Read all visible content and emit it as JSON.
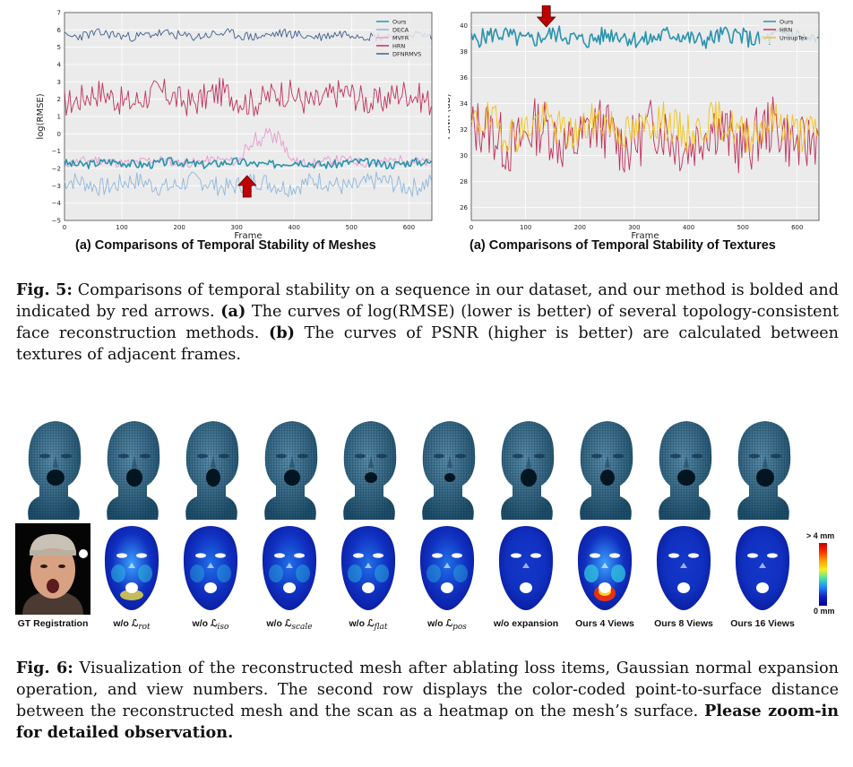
{
  "figure5": {
    "charts": [
      {
        "id": "meshes",
        "caption": "(a) Comparisons of Temporal Stability of Meshes",
        "chart_data": {
          "type": "line",
          "xlabel": "Frame",
          "ylabel": "log(RMSE)",
          "xlim": [
            0,
            640
          ],
          "ylim": [
            -5,
            7
          ],
          "xticks": [
            "0",
            "100",
            "200",
            "300",
            "400",
            "500",
            "600"
          ],
          "yticks": [
            "7",
            "6",
            "5",
            "4",
            "3",
            "2",
            "1",
            "0",
            "−1",
            "−2",
            "−3",
            "−4",
            "−5"
          ],
          "grid": true,
          "legend_position": "top-right",
          "series": [
            {
              "name": "Ours",
              "color": "#2a93ad",
              "bold": true,
              "base": -1.7,
              "noise": 0.25,
              "seed": 3
            },
            {
              "name": "DECA",
              "color": "#8fb6dc",
              "base": -2.9,
              "noise": 0.55,
              "seed": 7
            },
            {
              "name": "MVFR",
              "color": "#e89ad0",
              "base": -1.6,
              "noise": 0.28,
              "seed": 11,
              "bump": {
                "from": 300,
                "to": 400,
                "level": 0.1
              }
            },
            {
              "name": "HRN",
              "color": "#c0315a",
              "base": 2.1,
              "noise": 0.85,
              "seed": 17
            },
            {
              "name": "DFNRMVS",
              "color": "#3f5f8c",
              "base": 5.7,
              "noise": 0.28,
              "seed": 23
            }
          ]
        }
      },
      {
        "id": "textures",
        "caption": "(a) Comparisons of Temporal Stability of Textures",
        "chart_data": {
          "type": "line",
          "xlabel": "Frame",
          "ylabel": "PSNR (dB)",
          "xlim": [
            0,
            640
          ],
          "ylim": [
            25,
            41
          ],
          "xticks": [
            "0",
            "100",
            "200",
            "300",
            "400",
            "500",
            "600"
          ],
          "yticks": [
            "40",
            "38",
            "36",
            "34",
            "32",
            "30",
            "28",
            "26"
          ],
          "grid": true,
          "legend_position": "top-right",
          "series": [
            {
              "name": "Ours",
              "color": "#2a93ad",
              "bold": true,
              "base": 39.1,
              "noise": 0.7,
              "seed": 5
            },
            {
              "name": "HRN",
              "color": "#c0315a",
              "base": 31.5,
              "noise": 2.3,
              "seed": 13
            },
            {
              "name": "UnsupTex",
              "color": "#f2c318",
              "base": 32.2,
              "noise": 1.5,
              "seed": 19
            }
          ]
        }
      }
    ],
    "caption": {
      "label": "Fig. 5:",
      "text1": " Comparisons of temporal stability on a sequence in our dataset, and our method is bolded and indicated by red arrows. ",
      "a_label": "(a)",
      "text2": " The curves of log(RMSE) (lower is better) of several topology-consistent face reconstruction methods. ",
      "b_label": "(b)",
      "text3": " The curves of PSNR (higher is better) are calculated between textures of adjacent frames."
    }
  },
  "figure6": {
    "columns": [
      {
        "label": "GT Registration",
        "sub": ""
      },
      {
        "label": "w/o ℒ",
        "sub": "rot"
      },
      {
        "label": "w/o ℒ",
        "sub": "iso"
      },
      {
        "label": "w/o ℒ",
        "sub": "scale"
      },
      {
        "label": "w/o ℒ",
        "sub": "flat"
      },
      {
        "label": "w/o ℒ",
        "sub": "pos"
      },
      {
        "label": "w/o expansion",
        "sub": ""
      },
      {
        "label": "Ours 4 Views",
        "sub": ""
      },
      {
        "label": "Ours 8 Views",
        "sub": ""
      },
      {
        "label": "Ours 16 Views",
        "sub": ""
      }
    ],
    "heatmap_error_levels": [
      0,
      0.35,
      0.2,
      0.22,
      0.25,
      0.2,
      0.08,
      0.6,
      0.12,
      0.05
    ],
    "colorbar": {
      "max_label": "> 4 mm",
      "min_label": "0 mm"
    },
    "caption": {
      "label": "Fig. 6:",
      "text": " Visualization of the reconstructed mesh after ablating loss items, Gaussian normal expansion operation, and view numbers. The second row displays the color-coded point-to-surface distance between the reconstructed mesh and the scan as a heatmap on the mesh’s surface. ",
      "bold_text": "Please zoom-in for detailed observation."
    }
  }
}
